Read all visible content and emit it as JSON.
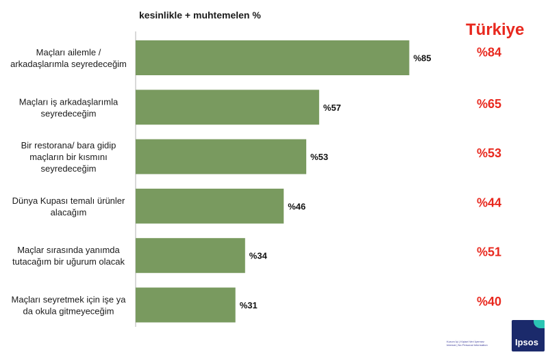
{
  "header_label": "kesinlikle + muhtemelen %",
  "country_label": "Türkiye",
  "footer_note": [
    "Kurum İçi | Kişisel Veri İçermez",
    "Internal | No Personal Information"
  ],
  "logo_text": "Ipsos",
  "colors": {
    "bar": "#799a5f",
    "axis": "#b0b0b0",
    "value_text": "#111111",
    "comparison_text": "#e8281e",
    "logo_bg": "#1b2a6b",
    "logo_accent": "#2bc5b4"
  },
  "chart_data": {
    "type": "bar",
    "orientation": "horizontal",
    "categories": [
      [
        "Maçları ailemle /",
        "arkadaşlarımla seyredeceğim"
      ],
      [
        "Maçları iş arkadaşlarımla",
        "seyredeceğim"
      ],
      [
        "Bir restorana/ bara gidip",
        "maçların bir kısmını",
        "seyredeceğim"
      ],
      [
        "Dünya Kupası temalı ürünler",
        "alacağım"
      ],
      [
        "Maçlar sırasında yanımda",
        "tutacağım bir uğurum olacak"
      ],
      [
        "Maçları seyretmek için işe ya",
        "da okula gitmeyeceğim"
      ]
    ],
    "values": [
      85,
      57,
      53,
      46,
      34,
      31
    ],
    "value_labels": [
      "%85",
      "%57",
      "%53",
      "%46",
      "%34",
      "%31"
    ],
    "comparison_values": [
      84,
      65,
      53,
      44,
      51,
      40
    ],
    "comparison_labels": [
      "%84",
      "%65",
      "%53",
      "%44",
      "%51",
      "%40"
    ],
    "xlim": [
      0,
      100
    ],
    "grid": false,
    "legend": "none"
  }
}
